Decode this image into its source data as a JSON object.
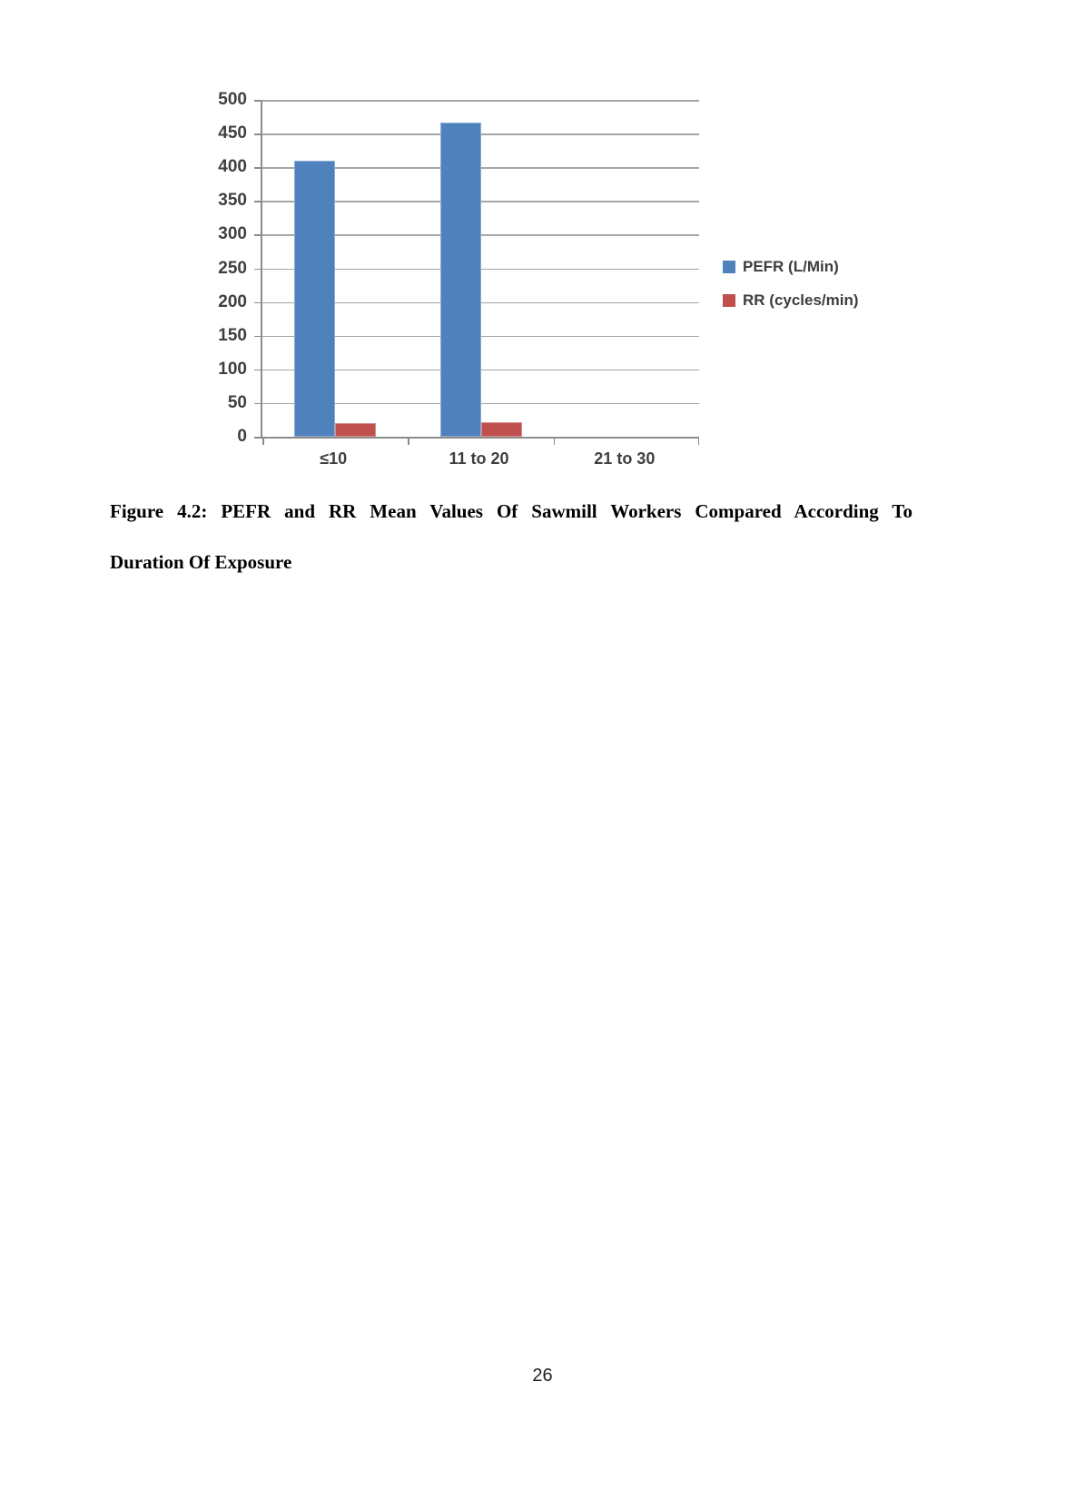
{
  "page": {
    "number": "26"
  },
  "figure": {
    "caption_line1": "Figure 4.2: PEFR and RR Mean Values Of Sawmill Workers Compared According To",
    "caption_line2": "Duration Of Exposure"
  },
  "chart_data": {
    "type": "bar",
    "categories": [
      "≤10",
      "11 to 20",
      "21 to 30"
    ],
    "series": [
      {
        "name": "PEFR (L/Min)",
        "color": "#4f81bd",
        "values": [
          410,
          467,
          0
        ]
      },
      {
        "name": "RR (cycles/min)",
        "color": "#c0504d",
        "values": [
          20,
          22,
          0
        ]
      }
    ],
    "ylim": [
      0,
      500
    ],
    "ytick_step": 50,
    "grid": true,
    "legend_position": "right",
    "gridline_color": "#a6a6a6",
    "axis_color": "#8c8c8c",
    "tick_label_color": "#3f3f3f"
  }
}
